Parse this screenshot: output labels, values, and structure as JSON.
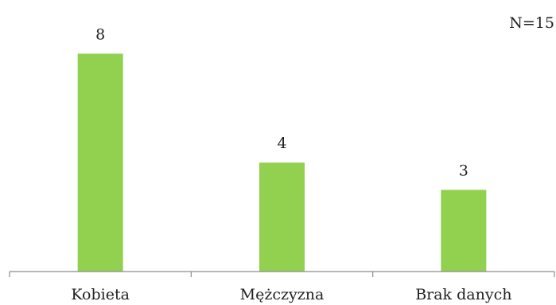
{
  "chart_data": {
    "type": "bar",
    "categories": [
      "Kobieta",
      "Mężczyzna",
      "Brak danych"
    ],
    "values": [
      8,
      4,
      3
    ],
    "data_labels": [
      "8",
      "4",
      "3"
    ],
    "note": "N=15",
    "title": "",
    "xlabel": "",
    "ylabel": "",
    "ylim": [
      0,
      9
    ],
    "grid": false,
    "legend": "none",
    "bar_color": "#92d050",
    "axis_color": "#8c8c8c"
  }
}
